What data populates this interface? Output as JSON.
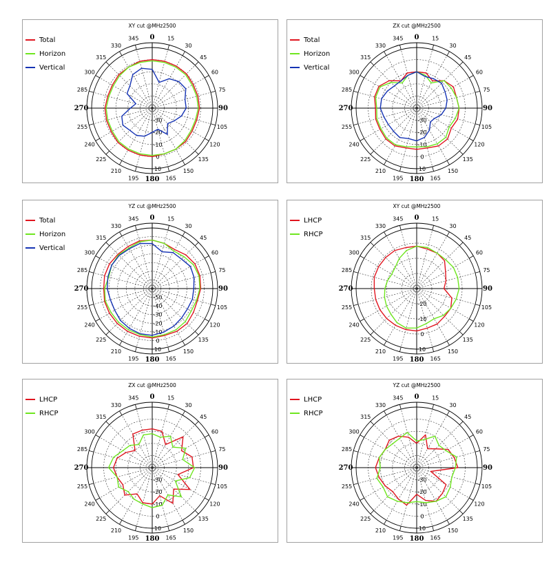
{
  "chart_data": [
    {
      "type": "polar",
      "title": "XY cut @MHz2500",
      "theta_labels": [
        "0",
        "15",
        "30",
        "45",
        "60",
        "75",
        "90",
        "105",
        "120",
        "135",
        "150",
        "165",
        "180",
        "195",
        "210",
        "225",
        "240",
        "255",
        "270",
        "285",
        "300",
        "315",
        "330",
        "345"
      ],
      "r_labels": [
        "-30",
        "-20",
        "-10",
        "0",
        "10"
      ],
      "rlim": [
        -40,
        10
      ],
      "series": [
        {
          "name": "Total",
          "color": "#e0141e",
          "values": [
            0,
            0,
            0,
            0,
            -1,
            -1,
            -1,
            -2,
            -2,
            -1,
            -1,
            -1,
            0,
            0,
            0,
            0,
            -1,
            -1,
            -1,
            -2,
            -2,
            -1,
            -1,
            0
          ]
        },
        {
          "name": "Horizon",
          "color": "#6ee61e",
          "values": [
            -1,
            -1,
            -1,
            -1,
            -2,
            -2,
            -2,
            -3,
            -3,
            -2,
            -1,
            -1,
            -1,
            -1,
            -1,
            -1,
            -2,
            -2,
            -2,
            -3,
            -3,
            -2,
            -1,
            -1
          ]
        },
        {
          "name": "Vertical",
          "color": "#1432b4",
          "values": [
            -8,
            -18,
            -12,
            -9,
            -8,
            -12,
            -12,
            -15,
            -19,
            -22,
            -15,
            -22,
            -20,
            -16,
            -14,
            -14,
            -12,
            -14,
            -22,
            -26,
            -16,
            -14,
            -8,
            -6
          ]
        }
      ]
    },
    {
      "type": "polar",
      "title": "ZX cut @MHz2500",
      "theta_labels": [
        "0",
        "15",
        "30",
        "45",
        "60",
        "75",
        "90",
        "105",
        "120",
        "135",
        "150",
        "165",
        "180",
        "195",
        "210",
        "225",
        "240",
        "255",
        "270",
        "285",
        "300",
        "315",
        "330",
        "345"
      ],
      "r_labels": [
        "-30",
        "-20",
        "-10",
        "0",
        "10"
      ],
      "rlim": [
        -40,
        10
      ],
      "series": [
        {
          "name": "Total",
          "color": "#e0141e",
          "values": [
            -10,
            -10,
            -14,
            -8,
            -5,
            -6,
            -5,
            -5,
            -7,
            -4,
            -4,
            -6,
            -6,
            -6,
            -4,
            -4,
            -5,
            -5,
            -6,
            -4,
            -4,
            -8,
            -14,
            -10
          ]
        },
        {
          "name": "Horizon",
          "color": "#6ee61e",
          "values": [
            -10,
            -12,
            -16,
            -8,
            -7,
            -6,
            -5,
            -7,
            -9,
            -6,
            -6,
            -7,
            -8,
            -7,
            -5,
            -5,
            -6,
            -6,
            -7,
            -5,
            -5,
            -10,
            -16,
            -12
          ]
        },
        {
          "name": "Vertical",
          "color": "#1432b4",
          "values": [
            -10,
            -13,
            -12,
            -11,
            -13,
            -14,
            -16,
            -19,
            -23,
            -24,
            -19,
            -15,
            -13,
            -14,
            -12,
            -13,
            -13,
            -12,
            -10,
            -10,
            -12,
            -14,
            -14,
            -12
          ]
        }
      ]
    },
    {
      "type": "polar",
      "title": "YZ cut @MHz2500",
      "theta_labels": [
        "0",
        "15",
        "30",
        "45",
        "60",
        "75",
        "90",
        "105",
        "120",
        "135",
        "150",
        "165",
        "180",
        "195",
        "210",
        "225",
        "240",
        "255",
        "270",
        "285",
        "300",
        "315",
        "330",
        "345"
      ],
      "r_labels": [
        "-50",
        "-40",
        "-30",
        "-20",
        "-10",
        "0",
        "10"
      ],
      "rlim": [
        -60,
        10
      ],
      "series": [
        {
          "name": "Total",
          "color": "#e0141e",
          "values": [
            -4,
            -6,
            -8,
            -5,
            -3,
            -3,
            -4,
            -6,
            -5,
            -3,
            -3,
            -4,
            -3,
            -3,
            -3,
            -3,
            -3,
            -3,
            -4,
            -3,
            -3,
            -4,
            -4,
            -3
          ]
        },
        {
          "name": "Horizon",
          "color": "#6ee61e",
          "values": [
            -4,
            -6,
            -10,
            -8,
            -5,
            -4,
            -5,
            -7,
            -8,
            -6,
            -5,
            -5,
            -4,
            -5,
            -5,
            -5,
            -5,
            -4,
            -5,
            -8,
            -6,
            -5,
            -6,
            -4
          ]
        },
        {
          "name": "Vertical",
          "color": "#1432b4",
          "values": [
            -8,
            -16,
            -12,
            -12,
            -9,
            -10,
            -12,
            -12,
            -13,
            -12,
            -10,
            -8,
            -6,
            -6,
            -7,
            -8,
            -10,
            -10,
            -8,
            -7,
            -6,
            -6,
            -7,
            -6
          ]
        }
      ]
    },
    {
      "type": "polar",
      "title": "XY cut @MHz2500",
      "theta_labels": [
        "0",
        "15",
        "30",
        "45",
        "60",
        "75",
        "90",
        "105",
        "120",
        "135",
        "150",
        "165",
        "180",
        "195",
        "210",
        "225",
        "240",
        "255",
        "270",
        "285",
        "300",
        "315",
        "330",
        "345"
      ],
      "r_labels": [
        "-20",
        "-10",
        "0",
        "10"
      ],
      "rlim": [
        -30,
        10
      ],
      "series": [
        {
          "name": "LHCP",
          "color": "#e0141e",
          "values": [
            -2,
            -3,
            -3,
            -4,
            -8,
            -10,
            -12,
            -6,
            -4,
            -4,
            -3,
            -3,
            -2,
            -2,
            -2,
            -2,
            -2,
            -2,
            -2,
            -1,
            -1,
            -1,
            -1,
            -2
          ]
        },
        {
          "name": "RHCP",
          "color": "#6ee61e",
          "values": [
            -2,
            -2,
            -3,
            -3,
            -2,
            -2,
            -2,
            -3,
            -4,
            -5,
            -7,
            -6,
            -4,
            -3,
            -4,
            -6,
            -7,
            -8,
            -9,
            -10,
            -11,
            -10,
            -7,
            -4
          ]
        }
      ]
    },
    {
      "type": "polar",
      "title": "ZX cut @MHz2500",
      "theta_labels": [
        "0",
        "15",
        "30",
        "45",
        "60",
        "75",
        "90",
        "105",
        "120",
        "135",
        "150",
        "165",
        "180",
        "195",
        "210",
        "225",
        "240",
        "255",
        "270",
        "285",
        "300",
        "315",
        "330",
        "345"
      ],
      "r_labels": [
        "-30",
        "-20",
        "-10",
        "0",
        "10"
      ],
      "rlim": [
        -40,
        10
      ],
      "series": [
        {
          "name": "LHCP",
          "color": "#e0141e",
          "values": [
            -8,
            -9,
            -18,
            -4,
            -12,
            -6,
            -6,
            -18,
            -4,
            -15,
            -6,
            -16,
            -10,
            -10,
            -15,
            -8,
            -12,
            -10,
            -8,
            -10,
            -15,
            -20,
            -8,
            -8
          ]
        },
        {
          "name": "RHCP",
          "color": "#6ee61e",
          "values": [
            -12,
            -14,
            -10,
            -16,
            -8,
            -14,
            -5,
            -8,
            -18,
            -6,
            -14,
            -8,
            -7,
            -9,
            -10,
            -12,
            -8,
            -10,
            -4,
            -7,
            -12,
            -14,
            -18,
            -12
          ]
        }
      ]
    },
    {
      "type": "polar",
      "title": "YZ cut @MHz2500",
      "theta_labels": [
        "0",
        "15",
        "30",
        "45",
        "60",
        "75",
        "90",
        "105",
        "120",
        "135",
        "150",
        "165",
        "180",
        "195",
        "210",
        "225",
        "240",
        "255",
        "270",
        "285",
        "300",
        "315",
        "330",
        "345"
      ],
      "r_labels": [
        "-30",
        "-20",
        "-10",
        "0",
        "10"
      ],
      "rlim": [
        -40,
        10
      ],
      "series": [
        {
          "name": "LHCP",
          "color": "#e0141e",
          "values": [
            -20,
            -12,
            -22,
            -18,
            -10,
            -8,
            -6,
            -28,
            -12,
            -10,
            -8,
            -12,
            -18,
            -8,
            -10,
            -12,
            -10,
            -8,
            -6,
            -8,
            -10,
            -8,
            -10,
            -14
          ]
        },
        {
          "name": "RHCP",
          "color": "#6ee61e",
          "values": [
            -18,
            -16,
            -10,
            -14,
            -12,
            -6,
            -8,
            -10,
            -8,
            -6,
            -8,
            -10,
            -12,
            -10,
            -8,
            -6,
            -8,
            -6,
            -10,
            -8,
            -10,
            -12,
            -12,
            -10
          ]
        }
      ]
    }
  ]
}
